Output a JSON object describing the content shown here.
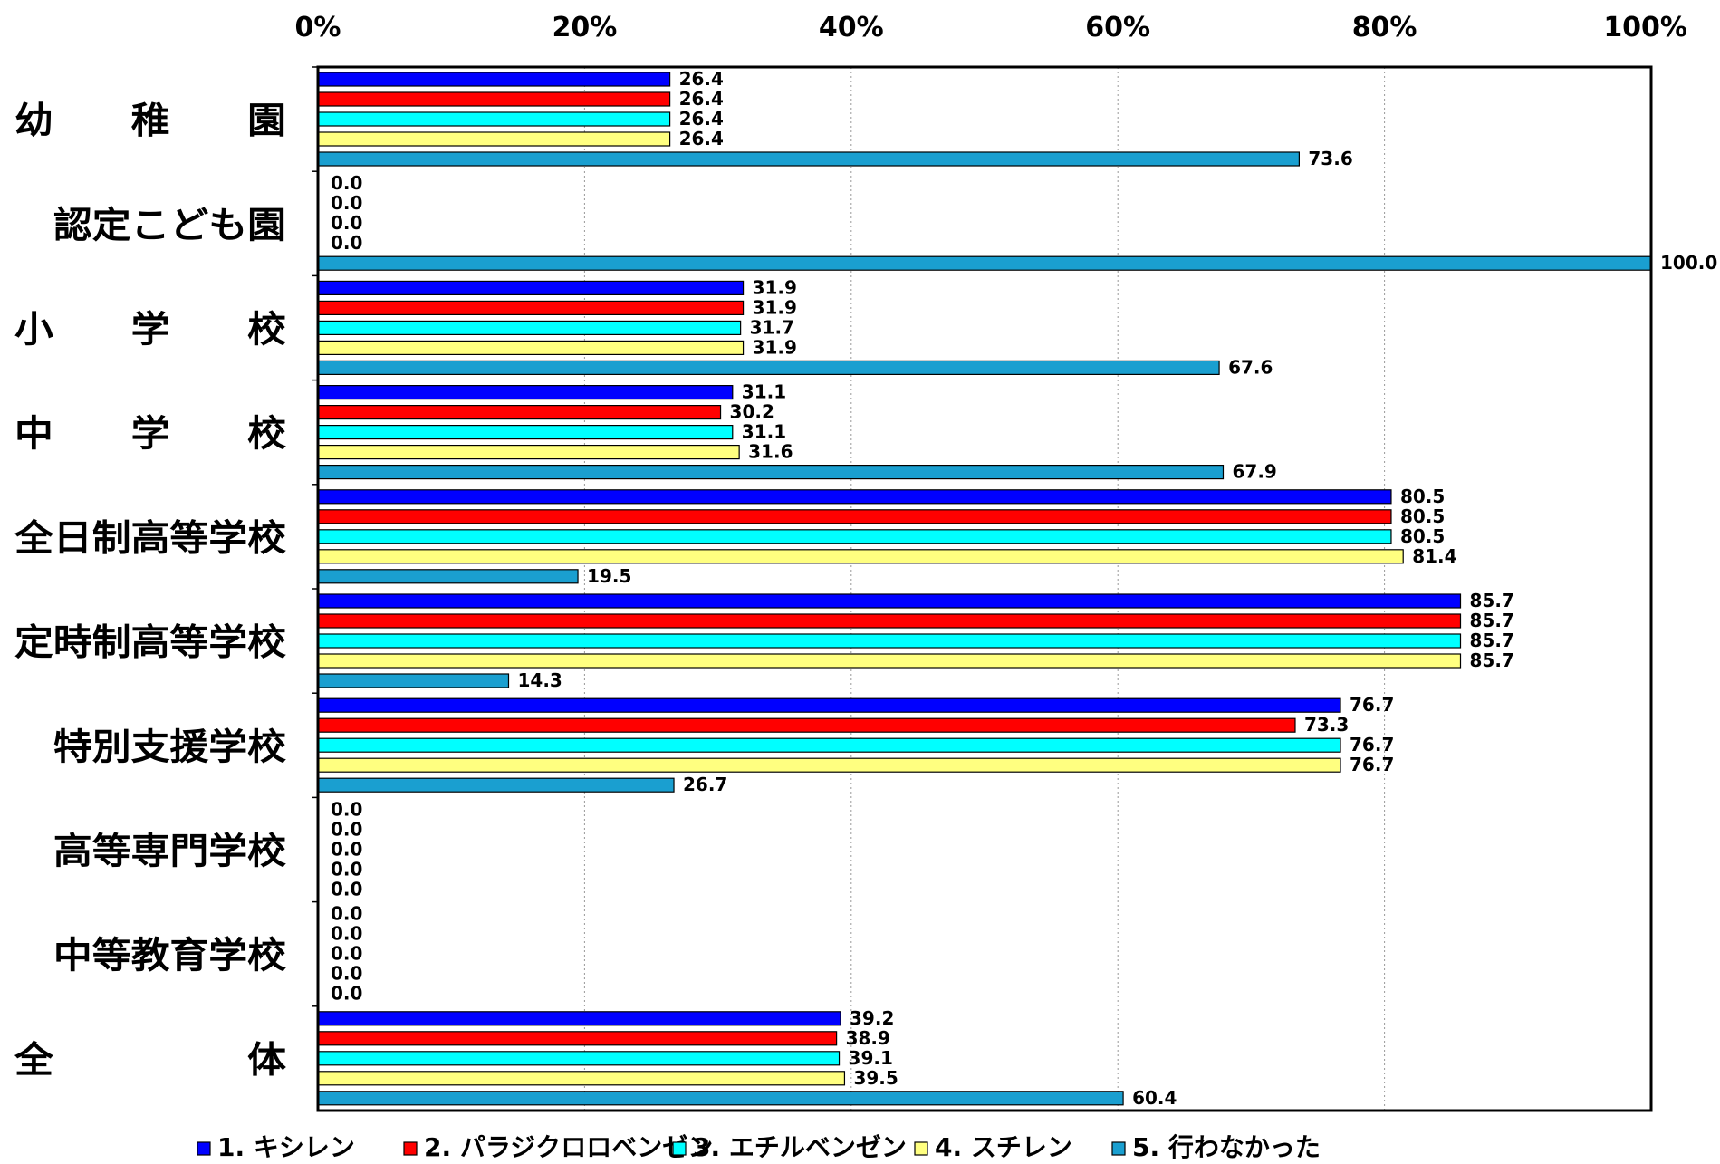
{
  "chart_data": {
    "type": "bar",
    "orientation": "horizontal",
    "title": "",
    "xlabel": "",
    "ylabel": "",
    "xlim": [
      0,
      100
    ],
    "x_ticks": [
      "0%",
      "20%",
      "40%",
      "60%",
      "80%",
      "100%"
    ],
    "grid": "vertical dotted",
    "legend_position": "bottom",
    "categories": [
      "幼　　稚　　園",
      "　認定こども園",
      "小　　学　　校",
      "中　　学　　校",
      "全日制高等学校",
      "定時制高等学校",
      "　特別支援学校",
      "　高等専門学校",
      "　中等教育学校",
      "全　　　　　体"
    ],
    "series": [
      {
        "name": "1. キシレン",
        "color": "#0000ff",
        "values": [
          26.4,
          0.0,
          31.9,
          31.1,
          80.5,
          85.7,
          76.7,
          0.0,
          0.0,
          39.2
        ],
        "labels": [
          "26.4",
          "0.0",
          "31.9",
          "31.1",
          "80.5",
          "85.7",
          "76.7",
          "0.0",
          "0.0",
          "39.2"
        ]
      },
      {
        "name": "2. パラジクロロベンゼン",
        "color": "#ff0000",
        "values": [
          26.4,
          0.0,
          31.9,
          30.2,
          80.5,
          85.7,
          73.3,
          0.0,
          0.0,
          38.9
        ],
        "labels": [
          "26.4",
          "0.0",
          "31.9",
          "30.2",
          "80.5",
          "85.7",
          "73.3",
          "0.0",
          "0.0",
          "38.9"
        ]
      },
      {
        "name": "3. エチルベンゼン",
        "color": "#00ffff",
        "values": [
          26.4,
          0.0,
          31.7,
          31.1,
          80.5,
          85.7,
          76.7,
          0.0,
          0.0,
          39.1
        ],
        "labels": [
          "26.4",
          "0.0",
          "31.7",
          "31.1",
          "80.5",
          "85.7",
          "76.7",
          "0.0",
          "0.0",
          "39.1"
        ]
      },
      {
        "name": "4. スチレン",
        "color": "#ffff80",
        "values": [
          26.4,
          0.0,
          31.9,
          31.6,
          81.4,
          85.7,
          76.7,
          0.0,
          0.0,
          39.5
        ],
        "labels": [
          "26.4",
          "0.0",
          "31.9",
          "31.6",
          "81.4",
          "85.7",
          "76.7",
          "0.0",
          "0.0",
          "39.5"
        ]
      },
      {
        "name": "5. 行わなかった",
        "color": "#1a9fd0",
        "values": [
          73.6,
          100.0,
          67.6,
          67.9,
          19.5,
          14.3,
          26.7,
          0.0,
          0.0,
          60.4
        ],
        "labels": [
          "73.6",
          "100.0",
          "67.6",
          "67.9",
          "19.5",
          "14.3",
          "26.7",
          "0.0",
          "0.0",
          "60.4"
        ]
      }
    ]
  }
}
